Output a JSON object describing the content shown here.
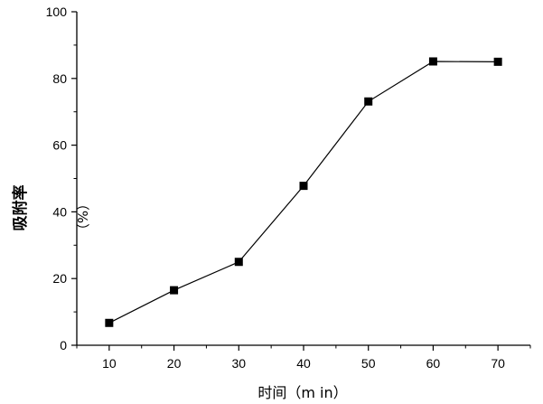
{
  "chart_data": {
    "type": "line",
    "x": [
      10,
      20,
      30,
      40,
      50,
      60,
      70
    ],
    "series": [
      {
        "values": [
          6.7,
          16.5,
          25.0,
          47.8,
          73.1,
          85.1,
          85.0
        ]
      }
    ],
    "xlabel": "时间（m in）",
    "ylabel_main": "吸附率",
    "ylabel_unit": "（%）",
    "xlim": [
      5,
      75
    ],
    "ylim": [
      0,
      100
    ],
    "xticks": [
      10,
      20,
      30,
      40,
      50,
      60,
      70
    ],
    "yticks": [
      0,
      20,
      40,
      60,
      80,
      100
    ],
    "grid": false,
    "legend": "none",
    "marker": "square",
    "color": "#000000"
  }
}
